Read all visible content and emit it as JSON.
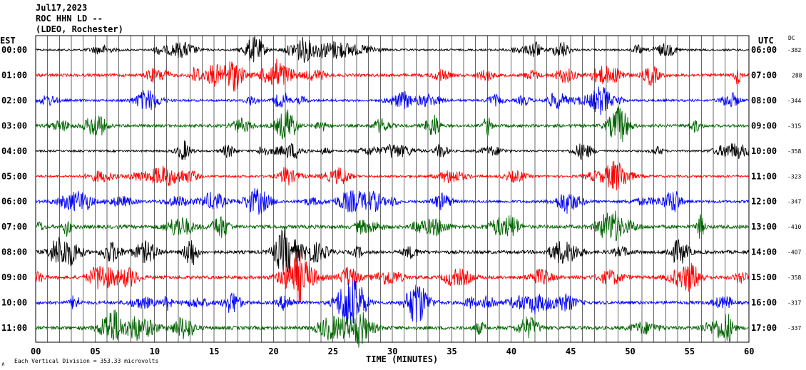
{
  "header": {
    "date": "Jul17,2023",
    "station": "ROC HHN LD --",
    "network": "(LDEO, Rochester)"
  },
  "left_axis_title": "EST",
  "right_axis_title": "UTC",
  "dc_title": "DC",
  "footer": {
    "scale_note": "Each Vertical Division =  353.33 microvolts",
    "corner_mark": "∧"
  },
  "colors": {
    "trace_cycle": [
      "#000000",
      "#ff0000",
      "#0000ff",
      "#006400"
    ],
    "gridline": "#000000"
  },
  "chart_data": {
    "type": "line",
    "title": "",
    "xlabel": "TIME (MINUTES)",
    "xlim": [
      0,
      60
    ],
    "x_ticks": [
      "00",
      "05",
      "10",
      "15",
      "20",
      "25",
      "30",
      "35",
      "40",
      "45",
      "50",
      "55",
      "60"
    ],
    "x_tick_values": [
      0,
      5,
      10,
      15,
      20,
      25,
      30,
      35,
      40,
      45,
      50,
      55,
      60
    ],
    "grid": true,
    "rows": [
      {
        "est": "00:00",
        "utc": "06:00",
        "dc": "-382",
        "color": "#000000",
        "amplitude": 0.6
      },
      {
        "est": "01:00",
        "utc": "07:00",
        "dc": "288",
        "color": "#ff0000",
        "amplitude": 0.9
      },
      {
        "est": "02:00",
        "utc": "08:00",
        "dc": "-344",
        "color": "#0000ff",
        "amplitude": 0.7
      },
      {
        "est": "03:00",
        "utc": "09:00",
        "dc": "-315",
        "color": "#006400",
        "amplitude": 0.9
      },
      {
        "est": "04:00",
        "utc": "10:00",
        "dc": "-358",
        "color": "#000000",
        "amplitude": 0.6
      },
      {
        "est": "05:00",
        "utc": "11:00",
        "dc": "-323",
        "color": "#ff0000",
        "amplitude": 0.7
      },
      {
        "est": "06:00",
        "utc": "12:00",
        "dc": "-347",
        "color": "#0000ff",
        "amplitude": 0.8
      },
      {
        "est": "07:00",
        "utc": "13:00",
        "dc": "-410",
        "color": "#006400",
        "amplitude": 1.1
      },
      {
        "est": "08:00",
        "utc": "14:00",
        "dc": "-407",
        "color": "#000000",
        "amplitude": 1.0
      },
      {
        "est": "09:00",
        "utc": "15:00",
        "dc": "-358",
        "color": "#ff0000",
        "amplitude": 1.0
      },
      {
        "est": "10:00",
        "utc": "16:00",
        "dc": "-317",
        "color": "#0000ff",
        "amplitude": 1.0
      },
      {
        "est": "11:00",
        "utc": "17:00",
        "dc": "-337",
        "color": "#006400",
        "amplitude": 1.1
      }
    ]
  }
}
